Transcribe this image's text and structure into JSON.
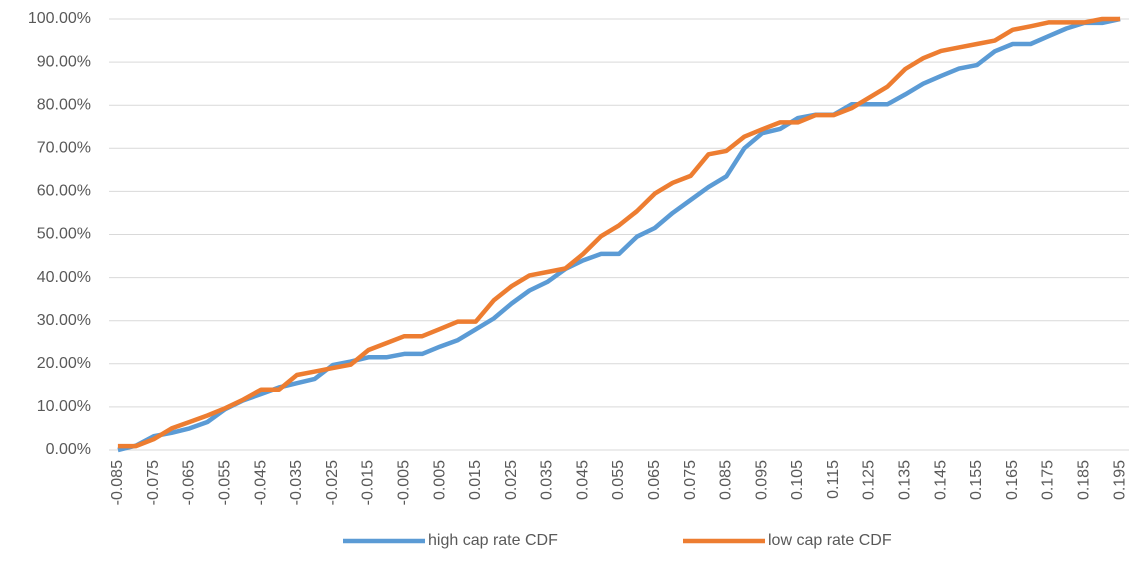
{
  "chart_data": {
    "type": "line",
    "categories": [
      "-0.085",
      null,
      "-0.075",
      null,
      "-0.065",
      null,
      "-0.055",
      null,
      "-0.045",
      null,
      "-0.035",
      null,
      "-0.025",
      null,
      "-0.015",
      null,
      "-0.005",
      null,
      "0.005",
      null,
      "0.015",
      null,
      "0.025",
      null,
      "0.035",
      null,
      "0.045",
      null,
      "0.055",
      null,
      "0.065",
      null,
      "0.075",
      null,
      "0.085",
      null,
      "0.095",
      null,
      "0.105",
      null,
      "0.115",
      null,
      "0.125",
      null,
      "0.135",
      null,
      "0.145",
      null,
      "0.155",
      null,
      "0.165",
      null,
      "0.175",
      null,
      "0.185",
      null,
      "0.195"
    ],
    "series": [
      {
        "name": "high cap rate CDF",
        "color": "#5b9bd5",
        "values": [
          0,
          1,
          3.2,
          4,
          5,
          6.5,
          9.5,
          11.5,
          13,
          14.5,
          15.5,
          16.5,
          19.7,
          20.5,
          21.5,
          21.5,
          22.3,
          22.3,
          24,
          25.5,
          28,
          30.5,
          34,
          37,
          39,
          42,
          44,
          45.5,
          45.5,
          49.5,
          51.5,
          55,
          58,
          61,
          63.5,
          70,
          73.5,
          74.5,
          77,
          77.8,
          77.8,
          80.2,
          80.2,
          80.2,
          82.5,
          85,
          86.8,
          88.5,
          89.3,
          92.5,
          94.2,
          94.2,
          96,
          97.8,
          99.1,
          99.1,
          100
        ]
      },
      {
        "name": "low cap rate CDF",
        "color": "#ed7d31",
        "values": [
          0.9,
          0.9,
          2.5,
          5,
          6.5,
          8,
          9.7,
          11.7,
          14,
          14,
          17.4,
          18.2,
          19,
          19.8,
          23.2,
          24.8,
          26.4,
          26.4,
          28.1,
          29.8,
          29.8,
          34.7,
          38,
          40.5,
          41.3,
          42.1,
          45.5,
          49.6,
          52.1,
          55.4,
          59.5,
          62,
          63.6,
          68.6,
          69.4,
          72.7,
          74.4,
          76,
          76,
          77.7,
          77.7,
          79.3,
          81.8,
          84.3,
          88.4,
          90.9,
          92.6,
          93.4,
          94.2,
          95,
          97.5,
          98.3,
          99.2,
          99.2,
          99.2,
          100,
          100
        ]
      }
    ],
    "ylim": [
      0,
      100
    ],
    "yticks": [
      {
        "value": 0,
        "label": "0.00%"
      },
      {
        "value": 10,
        "label": "10.00%"
      },
      {
        "value": 20,
        "label": "20.00%"
      },
      {
        "value": 30,
        "label": "30.00%"
      },
      {
        "value": 40,
        "label": "40.00%"
      },
      {
        "value": 50,
        "label": "50.00%"
      },
      {
        "value": 60,
        "label": "60.00%"
      },
      {
        "value": 70,
        "label": "70.00%"
      },
      {
        "value": 80,
        "label": "80.00%"
      },
      {
        "value": 90,
        "label": "90.00%"
      },
      {
        "value": 100,
        "label": "100.00%"
      }
    ],
    "grid": true,
    "legend": "bottom"
  }
}
